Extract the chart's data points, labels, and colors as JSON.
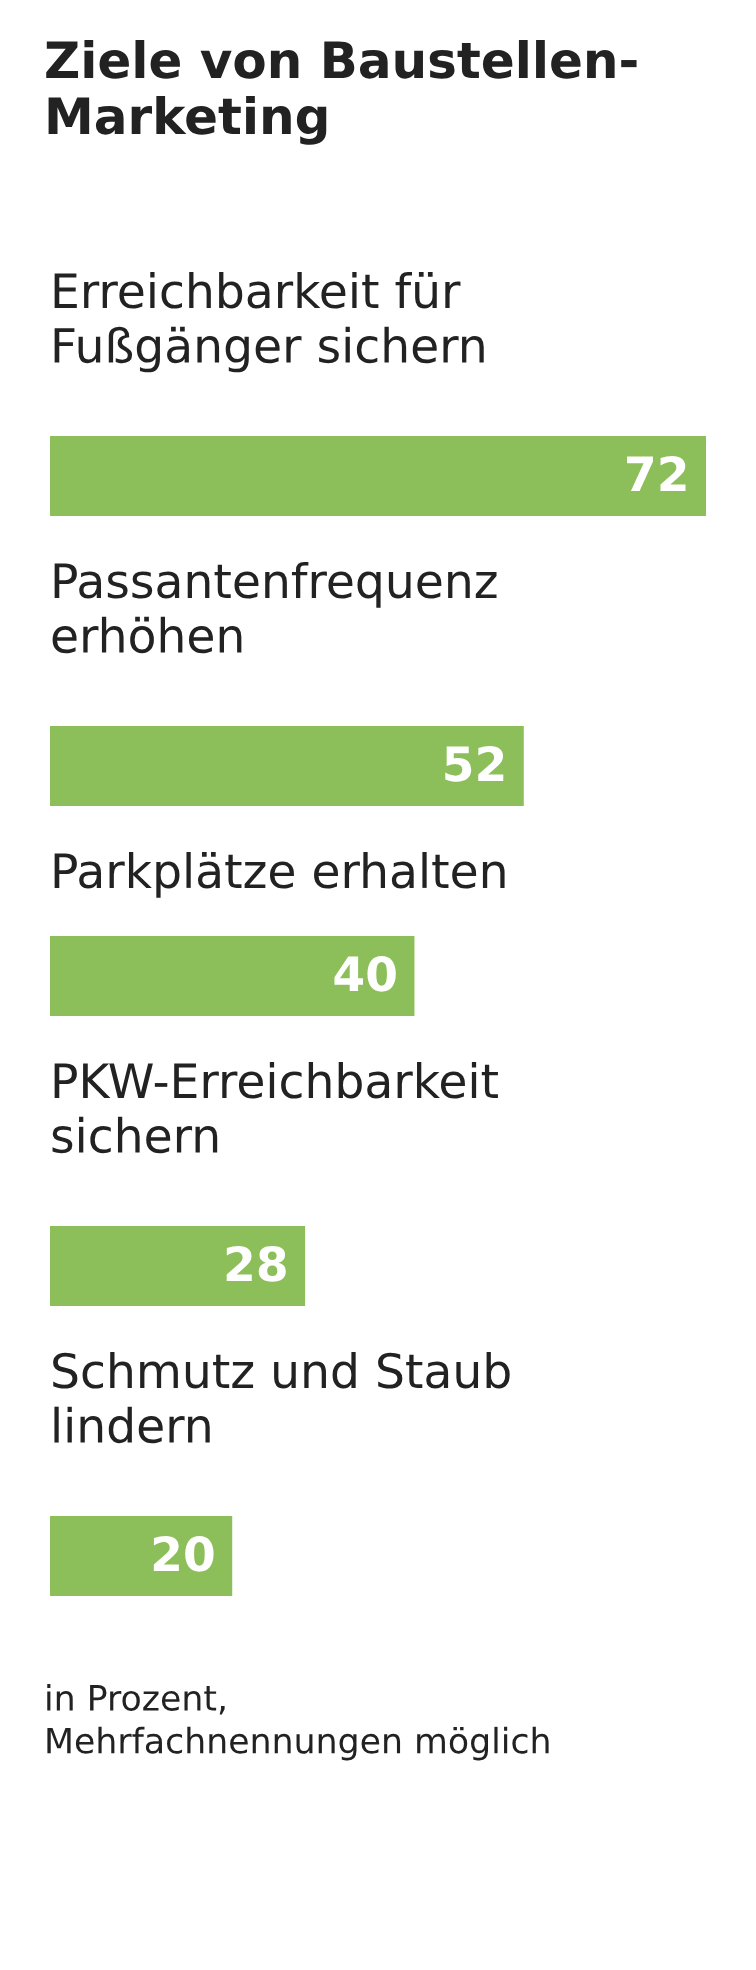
{
  "chart_data": {
    "type": "bar",
    "orientation": "horizontal",
    "title": "Ziele von Baustellen-\nMarketing",
    "categories": [
      "Erreichbarkeit für\nFußgänger sichern",
      "Passantenfrequenz\nerhöhen",
      "Parkplätze erhalten",
      "PKW-Erreichbarkeit\nsichern",
      "Schmutz und Staub\nlindern"
    ],
    "values": [
      72,
      52,
      40,
      28,
      20
    ],
    "color": "#8cbf5a",
    "data_labels": true,
    "annotations": [
      "in Prozent,\nMehrfachnennungen möglich"
    ]
  }
}
